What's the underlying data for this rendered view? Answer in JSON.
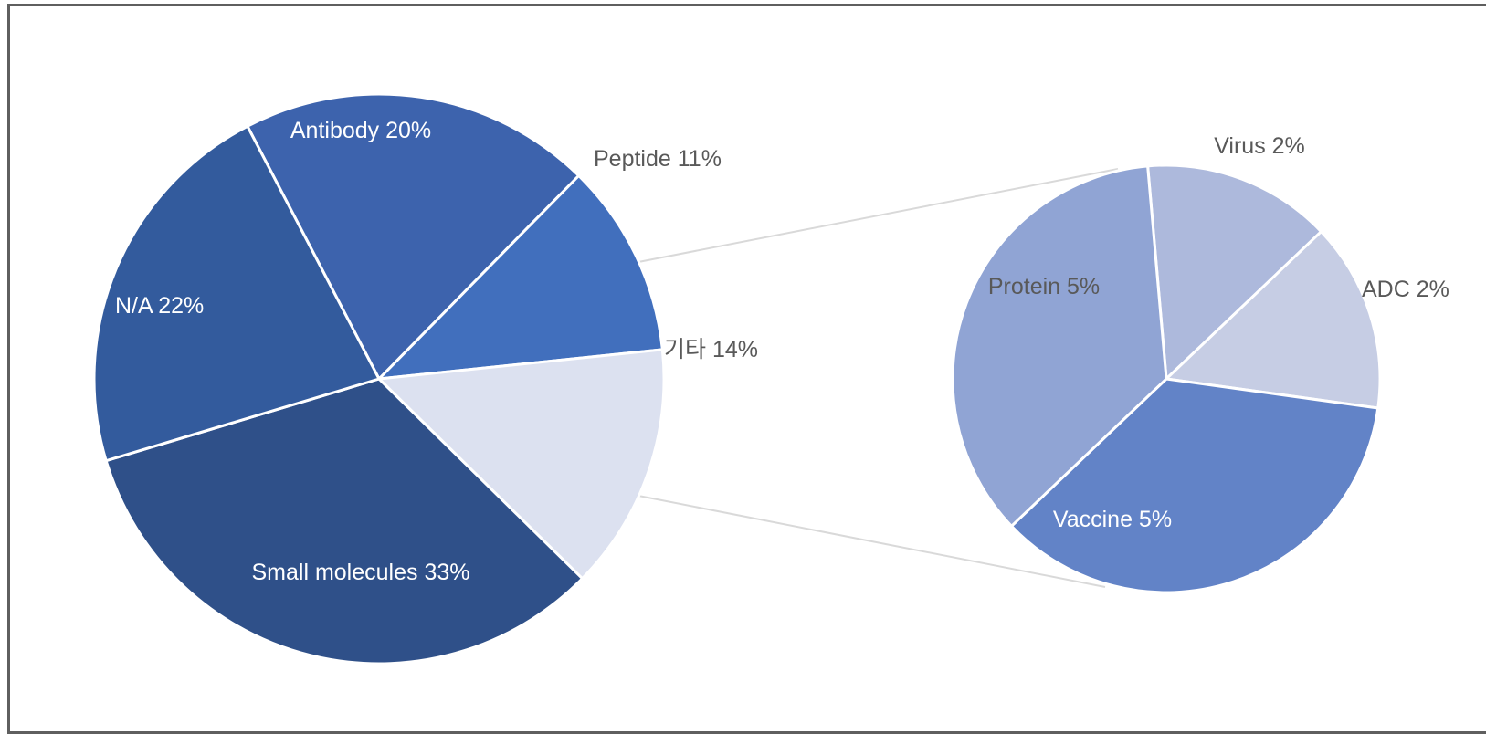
{
  "chart_data": [
    {
      "type": "pie",
      "slices": [
        {
          "label": "Antibody",
          "value": 20,
          "percent_label": "20%",
          "color": "#3d63ad"
        },
        {
          "label": "Peptide",
          "value": 11,
          "percent_label": "11%",
          "color": "#416fbd"
        },
        {
          "label": "기타",
          "value": 14,
          "percent_label": "14%",
          "color": "#dce1f0"
        },
        {
          "label": "Small molecules",
          "value": 33,
          "percent_label": "33%",
          "color": "#2f5089"
        },
        {
          "label": "N/A",
          "value": 22,
          "percent_label": "22%",
          "color": "#335b9d"
        }
      ]
    },
    {
      "type": "pie",
      "slices": [
        {
          "label": "Virus",
          "value": 2,
          "percent_label": "2%",
          "color": "#adb9dc"
        },
        {
          "label": "ADC",
          "value": 2,
          "percent_label": "2%",
          "color": "#c6cde4"
        },
        {
          "label": "Vaccine",
          "value": 5,
          "percent_label": "5%",
          "color": "#6283c7"
        },
        {
          "label": "Protein",
          "value": 5,
          "percent_label": "5%",
          "color": "#90a4d4"
        }
      ]
    }
  ]
}
